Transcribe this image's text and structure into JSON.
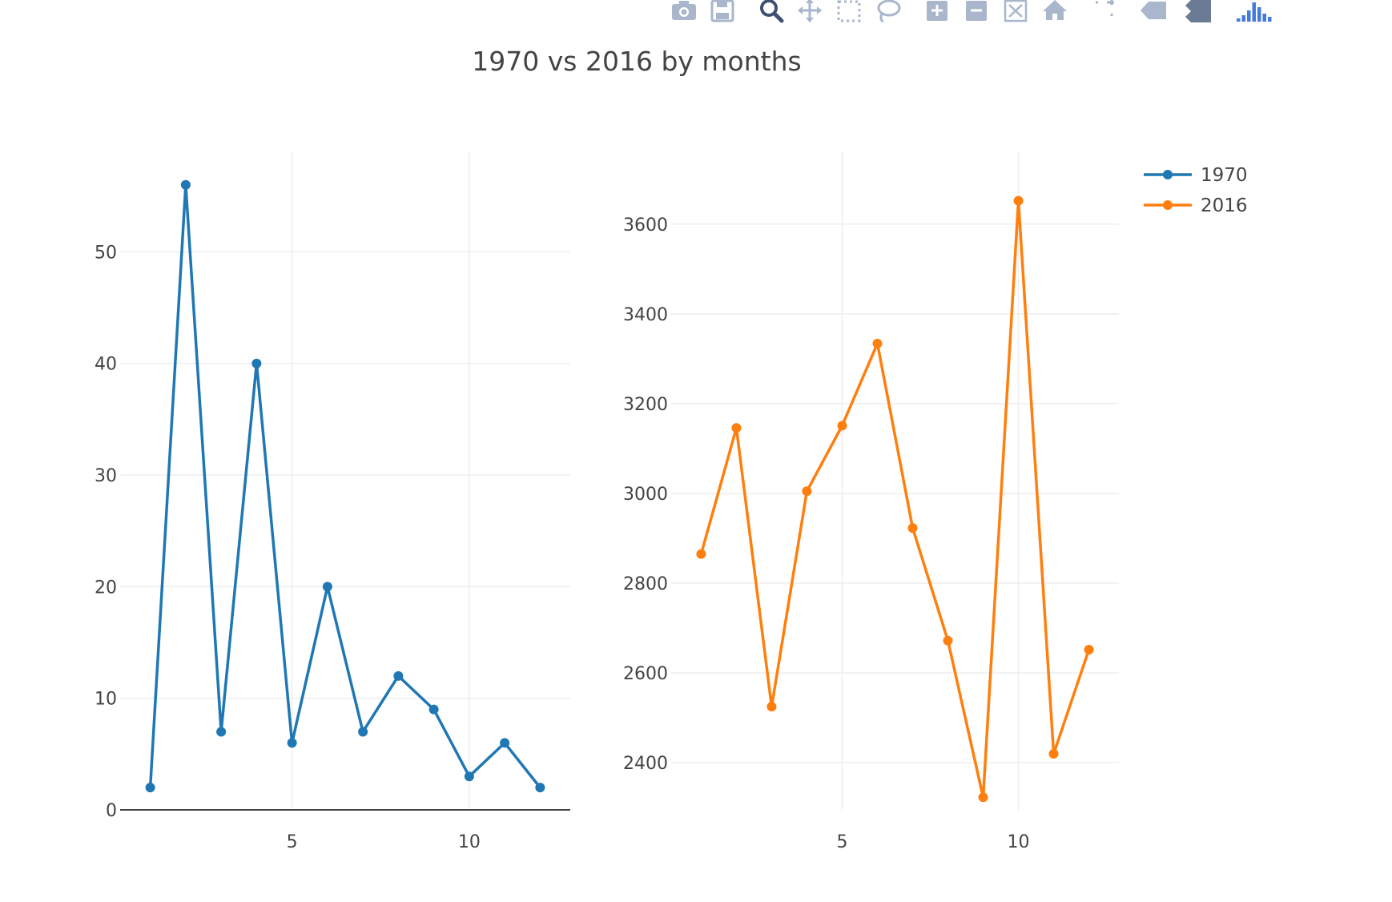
{
  "modebar": {
    "buttons": [
      {
        "name": "camera-icon"
      },
      {
        "name": "save-icon"
      },
      {
        "name": "zoom-icon",
        "active": true
      },
      {
        "name": "pan-icon"
      },
      {
        "name": "box-select-icon"
      },
      {
        "name": "lasso-select-icon"
      },
      {
        "name": "zoom-in-icon"
      },
      {
        "name": "zoom-out-icon"
      },
      {
        "name": "autoscale-icon"
      },
      {
        "name": "home-icon"
      },
      {
        "name": "spike-lines-icon"
      },
      {
        "name": "hover-closest-icon"
      },
      {
        "name": "hover-compare-icon"
      },
      {
        "name": "plotly-logo-icon"
      }
    ],
    "colors": {
      "default": "#a9b6cc",
      "active": "#3f5070",
      "logo": "#447adb"
    }
  },
  "chart_data": [
    {
      "type": "line",
      "title": "1970 vs 2016 by months",
      "xlabel": "",
      "ylabel": "",
      "x": [
        1,
        2,
        3,
        4,
        5,
        6,
        7,
        8,
        9,
        10,
        11,
        12
      ],
      "xlim": [
        0.15,
        12.85
      ],
      "ylim": [
        0,
        59
      ],
      "xticks": [
        5,
        10
      ],
      "xtick_labels": [
        "5",
        "10"
      ],
      "yticks": [
        0,
        10,
        20,
        30,
        40,
        50
      ],
      "ytick_labels": [
        "0",
        "10",
        "20",
        "30",
        "40",
        "50"
      ],
      "grid": true,
      "series": [
        {
          "name": "1970",
          "color": "#1f77b4",
          "values": [
            2,
            56,
            7,
            40,
            6,
            20,
            7,
            12,
            9,
            3,
            6,
            2
          ]
        }
      ]
    },
    {
      "type": "line",
      "title": "",
      "xlabel": "",
      "ylabel": "",
      "x": [
        1,
        2,
        3,
        4,
        5,
        6,
        7,
        8,
        9,
        10,
        11,
        12
      ],
      "xlim": [
        0.15,
        12.85
      ],
      "ylim": [
        2295,
        3762
      ],
      "xticks": [
        5,
        10
      ],
      "xtick_labels": [
        "5",
        "10"
      ],
      "yticks": [
        2400,
        2600,
        2800,
        3000,
        3200,
        3400,
        3600
      ],
      "ytick_labels": [
        "2400",
        "2600",
        "2800",
        "3000",
        "3200",
        "3400",
        "3600"
      ],
      "grid": true,
      "series": [
        {
          "name": "2016",
          "color": "#ff7f0e",
          "values": [
            2865,
            3146,
            2525,
            3005,
            3151,
            3334,
            2923,
            2672,
            2323,
            3652,
            2420,
            2652
          ]
        }
      ]
    }
  ],
  "legend": {
    "placement": "top-right",
    "items": [
      {
        "label": "1970",
        "color": "#1f77b4"
      },
      {
        "label": "2016",
        "color": "#ff7f0e"
      }
    ]
  }
}
